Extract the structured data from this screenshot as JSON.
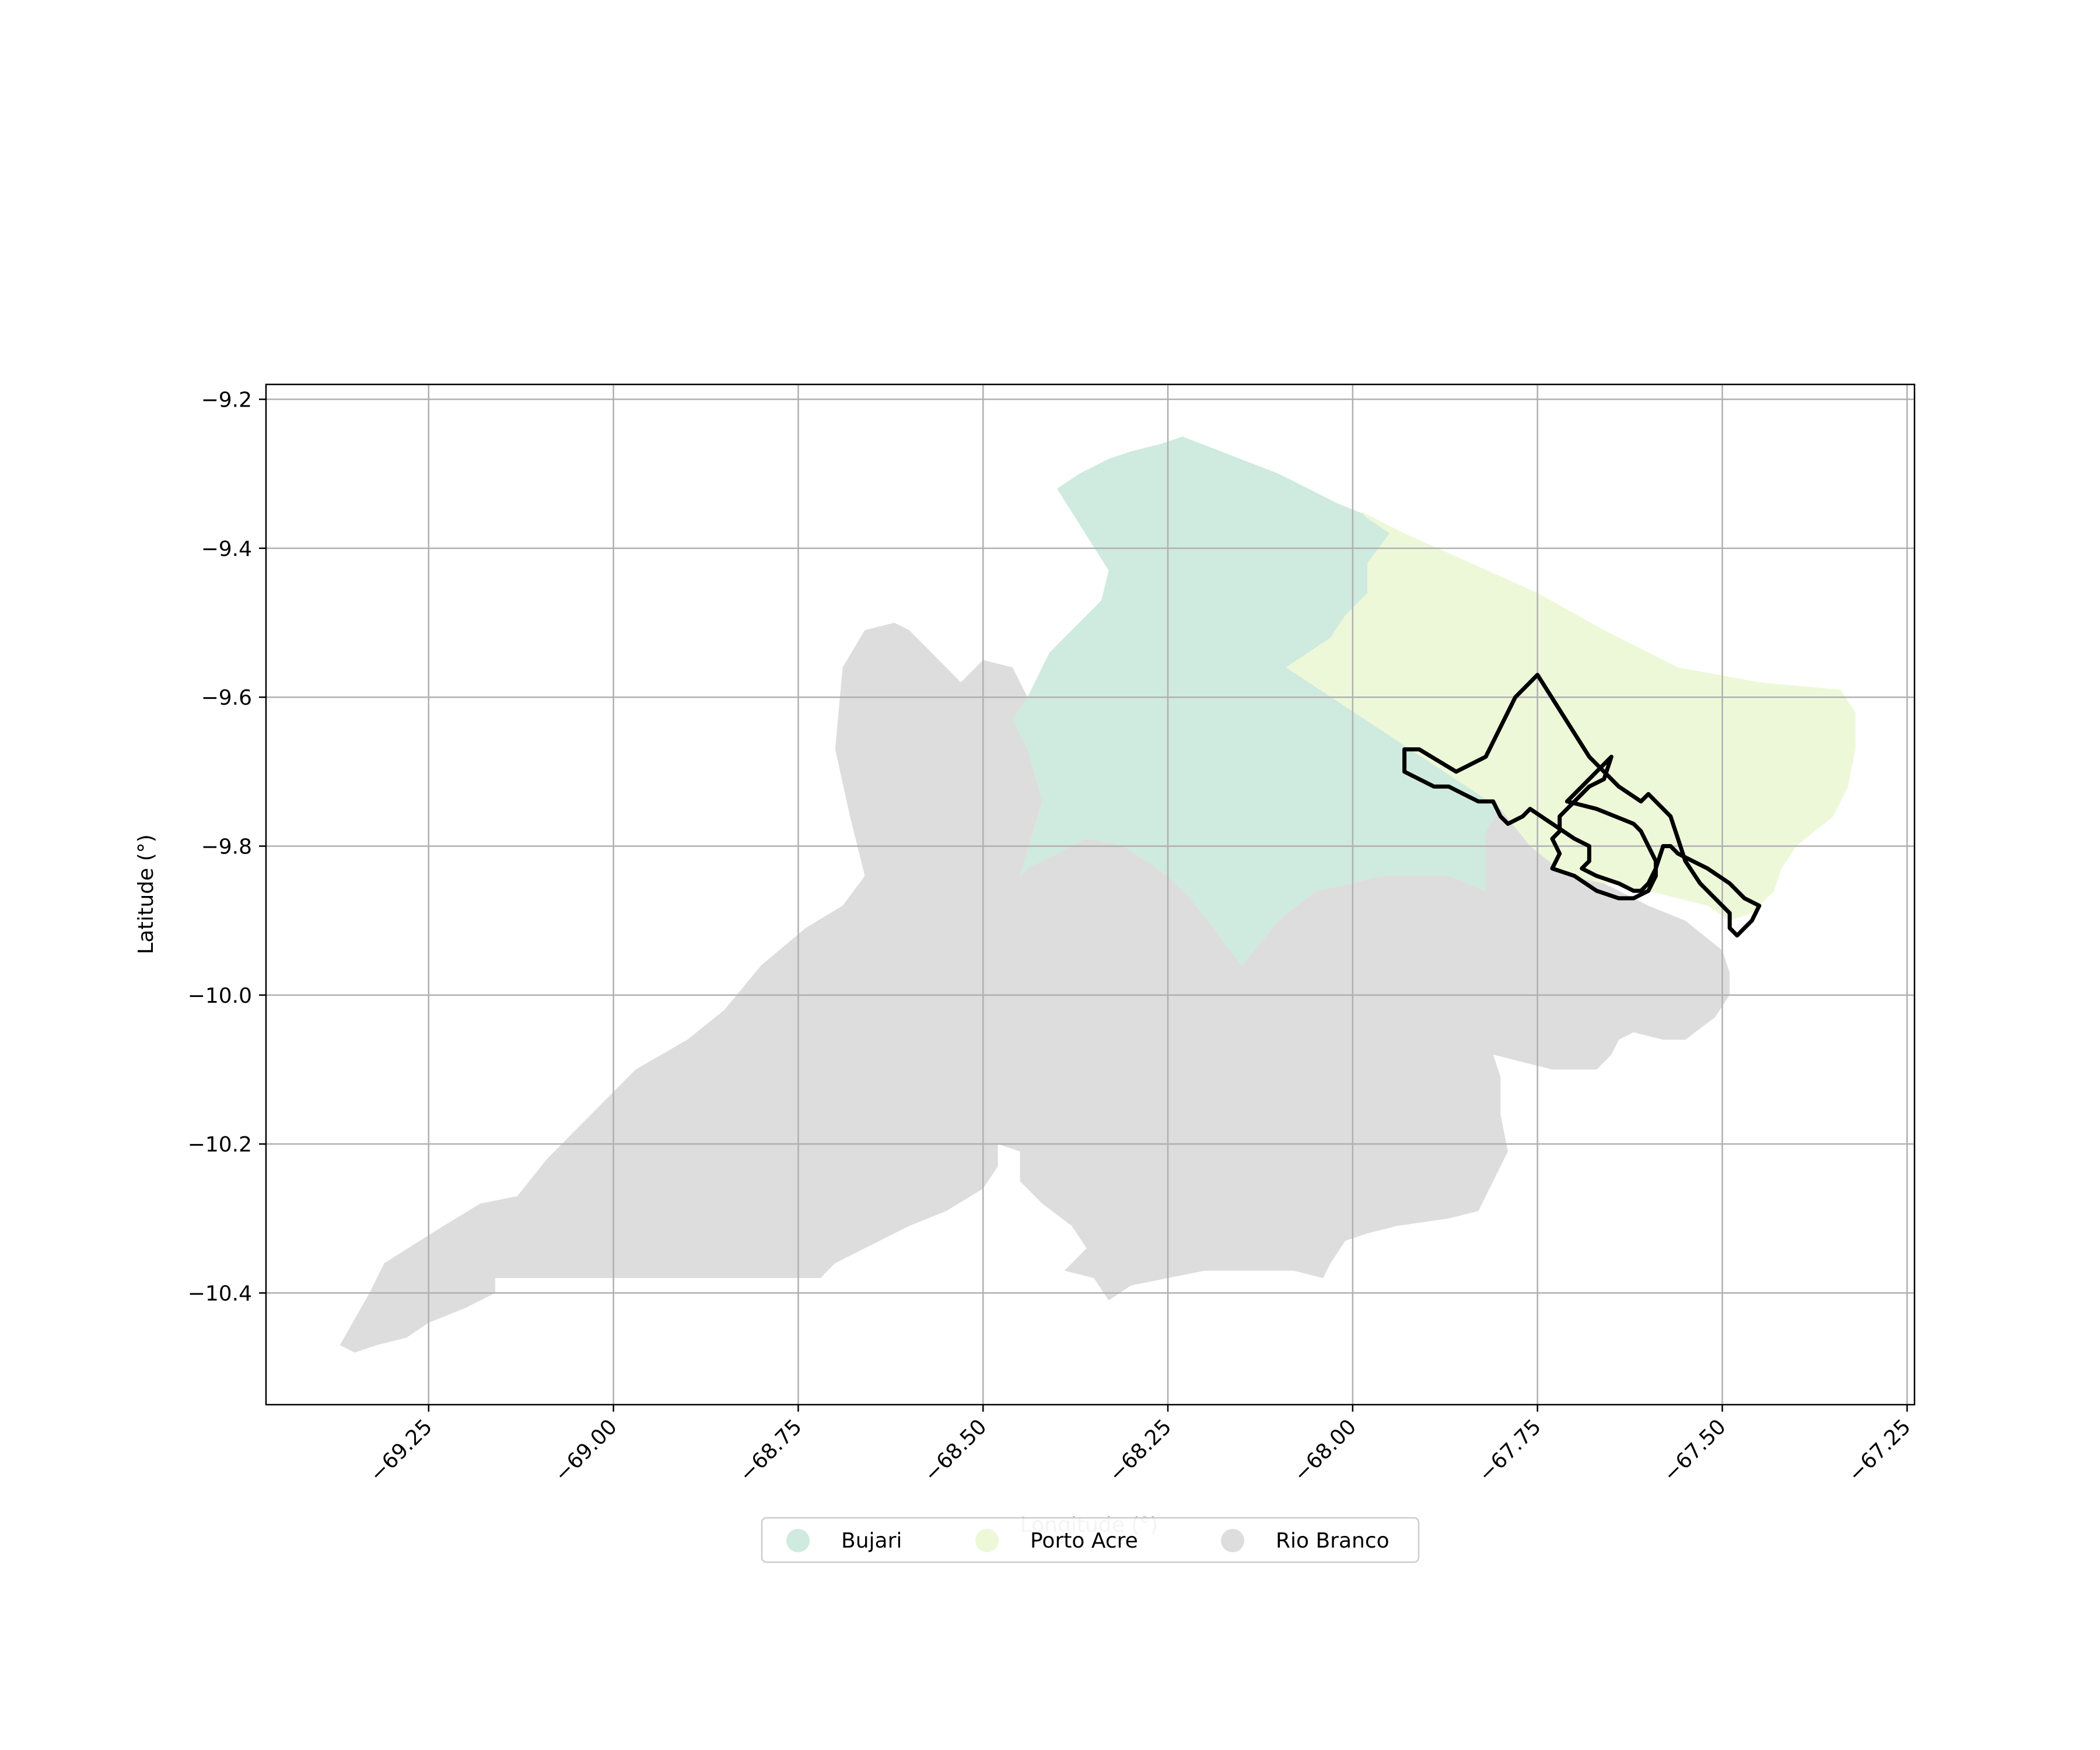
{
  "chart_data": {
    "type": "map",
    "xlabel": "Longitude (°)",
    "ylabel": "Latitude (°)",
    "xlim": [
      -69.47,
      -67.24
    ],
    "ylim": [
      -10.55,
      -9.18
    ],
    "grid": true,
    "legend_placement": "bottom-center",
    "x_ticks": [
      {
        "value": -69.25,
        "label": "−69.25"
      },
      {
        "value": -69.0,
        "label": "−69.00"
      },
      {
        "value": -68.75,
        "label": "−68.75"
      },
      {
        "value": -68.5,
        "label": "−68.50"
      },
      {
        "value": -68.25,
        "label": "−68.25"
      },
      {
        "value": -68.0,
        "label": "−68.00"
      },
      {
        "value": -67.75,
        "label": "−67.75"
      },
      {
        "value": -67.5,
        "label": "−67.50"
      },
      {
        "value": -67.25,
        "label": "−67.25"
      }
    ],
    "y_ticks": [
      {
        "value": -9.2,
        "label": "−9.2"
      },
      {
        "value": -9.4,
        "label": "−9.4"
      },
      {
        "value": -9.6,
        "label": "−9.6"
      },
      {
        "value": -9.8,
        "label": "−9.8"
      },
      {
        "value": -10.0,
        "label": "−10.0"
      },
      {
        "value": -10.2,
        "label": "−10.2"
      },
      {
        "value": -10.4,
        "label": "−10.4"
      }
    ],
    "regions": [
      {
        "name": "Bujari",
        "color": "#cfeadf",
        "polygon": [
          [
            -68.4,
            -9.32
          ],
          [
            -68.37,
            -9.3
          ],
          [
            -68.33,
            -9.28
          ],
          [
            -68.3,
            -9.27
          ],
          [
            -68.26,
            -9.26
          ],
          [
            -68.23,
            -9.25
          ],
          [
            -68.1,
            -9.3
          ],
          [
            -68.02,
            -9.34
          ],
          [
            -67.97,
            -9.36
          ],
          [
            -67.95,
            -9.38
          ],
          [
            -67.98,
            -9.42
          ],
          [
            -67.98,
            -9.46
          ],
          [
            -68.01,
            -9.49
          ],
          [
            -68.03,
            -9.52
          ],
          [
            -68.09,
            -9.56
          ],
          [
            -67.8,
            -9.75
          ],
          [
            -67.82,
            -9.78
          ],
          [
            -67.82,
            -9.86
          ],
          [
            -67.87,
            -9.84
          ],
          [
            -67.96,
            -9.84
          ],
          [
            -68.0,
            -9.85
          ],
          [
            -68.05,
            -9.86
          ],
          [
            -68.1,
            -9.9
          ],
          [
            -68.15,
            -9.96
          ],
          [
            -68.22,
            -9.87
          ],
          [
            -68.25,
            -9.84
          ],
          [
            -68.31,
            -9.8
          ],
          [
            -68.36,
            -9.79
          ],
          [
            -68.4,
            -9.81
          ],
          [
            -68.44,
            -9.83
          ],
          [
            -68.45,
            -9.84
          ],
          [
            -68.42,
            -9.74
          ],
          [
            -68.44,
            -9.67
          ],
          [
            -68.46,
            -9.63
          ],
          [
            -68.44,
            -9.6
          ],
          [
            -68.41,
            -9.54
          ],
          [
            -68.38,
            -9.51
          ],
          [
            -68.34,
            -9.47
          ],
          [
            -68.33,
            -9.43
          ]
        ]
      },
      {
        "name": "Porto Acre",
        "color": "#edf8d9",
        "polygon": [
          [
            -67.95,
            -9.38
          ],
          [
            -67.98,
            -9.36
          ],
          [
            -67.99,
            -9.35
          ],
          [
            -67.93,
            -9.38
          ],
          [
            -67.84,
            -9.42
          ],
          [
            -67.75,
            -9.46
          ],
          [
            -67.66,
            -9.51
          ],
          [
            -67.56,
            -9.56
          ],
          [
            -67.45,
            -9.58
          ],
          [
            -67.34,
            -9.59
          ],
          [
            -67.32,
            -9.62
          ],
          [
            -67.32,
            -9.67
          ],
          [
            -67.33,
            -9.72
          ],
          [
            -67.35,
            -9.76
          ],
          [
            -67.4,
            -9.8
          ],
          [
            -67.42,
            -9.83
          ],
          [
            -67.43,
            -9.86
          ],
          [
            -67.46,
            -9.89
          ],
          [
            -67.49,
            -9.9
          ],
          [
            -67.52,
            -9.88
          ],
          [
            -67.56,
            -9.87
          ],
          [
            -67.6,
            -9.86
          ],
          [
            -67.66,
            -9.85
          ],
          [
            -67.71,
            -9.84
          ],
          [
            -67.76,
            -9.8
          ],
          [
            -67.8,
            -9.75
          ],
          [
            -68.09,
            -9.56
          ],
          [
            -68.03,
            -9.52
          ],
          [
            -68.01,
            -9.49
          ],
          [
            -67.98,
            -9.46
          ],
          [
            -67.98,
            -9.42
          ]
        ]
      },
      {
        "name": "Rio Branco",
        "color": "#dddddd",
        "polygon": [
          [
            -69.37,
            -10.47
          ],
          [
            -69.35,
            -10.48
          ],
          [
            -69.32,
            -10.47
          ],
          [
            -69.28,
            -10.46
          ],
          [
            -69.25,
            -10.44
          ],
          [
            -69.2,
            -10.42
          ],
          [
            -69.16,
            -10.4
          ],
          [
            -69.16,
            -10.38
          ],
          [
            -68.72,
            -10.38
          ],
          [
            -68.7,
            -10.36
          ],
          [
            -68.66,
            -10.34
          ],
          [
            -68.6,
            -10.31
          ],
          [
            -68.55,
            -10.29
          ],
          [
            -68.5,
            -10.26
          ],
          [
            -68.48,
            -10.23
          ],
          [
            -68.48,
            -10.2
          ],
          [
            -68.45,
            -10.21
          ],
          [
            -68.45,
            -10.25
          ],
          [
            -68.42,
            -10.28
          ],
          [
            -68.38,
            -10.31
          ],
          [
            -68.36,
            -10.34
          ],
          [
            -68.39,
            -10.37
          ],
          [
            -68.35,
            -10.38
          ],
          [
            -68.33,
            -10.41
          ],
          [
            -68.3,
            -10.39
          ],
          [
            -68.25,
            -10.38
          ],
          [
            -68.2,
            -10.37
          ],
          [
            -68.14,
            -10.37
          ],
          [
            -68.08,
            -10.37
          ],
          [
            -68.04,
            -10.38
          ],
          [
            -68.03,
            -10.36
          ],
          [
            -68.01,
            -10.33
          ],
          [
            -67.98,
            -10.32
          ],
          [
            -67.94,
            -10.31
          ],
          [
            -67.87,
            -10.3
          ],
          [
            -67.83,
            -10.29
          ],
          [
            -67.81,
            -10.25
          ],
          [
            -67.79,
            -10.21
          ],
          [
            -67.8,
            -10.16
          ],
          [
            -67.8,
            -10.11
          ],
          [
            -67.81,
            -10.08
          ],
          [
            -67.73,
            -10.1
          ],
          [
            -67.67,
            -10.1
          ],
          [
            -67.65,
            -10.08
          ],
          [
            -67.64,
            -10.06
          ],
          [
            -67.62,
            -10.05
          ],
          [
            -67.58,
            -10.06
          ],
          [
            -67.55,
            -10.06
          ],
          [
            -67.51,
            -10.03
          ],
          [
            -67.49,
            -10.0
          ],
          [
            -67.49,
            -9.97
          ],
          [
            -67.5,
            -9.94
          ],
          [
            -67.55,
            -9.9
          ],
          [
            -67.6,
            -9.88
          ],
          [
            -67.66,
            -9.85
          ],
          [
            -67.71,
            -9.84
          ],
          [
            -67.76,
            -9.8
          ],
          [
            -67.8,
            -9.75
          ],
          [
            -67.82,
            -9.78
          ],
          [
            -67.82,
            -9.86
          ],
          [
            -67.87,
            -9.84
          ],
          [
            -67.96,
            -9.84
          ],
          [
            -68.0,
            -9.85
          ],
          [
            -68.05,
            -9.86
          ],
          [
            -68.1,
            -9.9
          ],
          [
            -68.15,
            -9.96
          ],
          [
            -68.22,
            -9.87
          ],
          [
            -68.25,
            -9.84
          ],
          [
            -68.31,
            -9.8
          ],
          [
            -68.36,
            -9.79
          ],
          [
            -68.4,
            -9.81
          ],
          [
            -68.44,
            -9.83
          ],
          [
            -68.45,
            -9.84
          ],
          [
            -68.42,
            -9.74
          ],
          [
            -68.44,
            -9.67
          ],
          [
            -68.46,
            -9.63
          ],
          [
            -68.44,
            -9.6
          ],
          [
            -68.46,
            -9.56
          ],
          [
            -68.5,
            -9.55
          ],
          [
            -68.53,
            -9.58
          ],
          [
            -68.58,
            -9.53
          ],
          [
            -68.6,
            -9.51
          ],
          [
            -68.62,
            -9.5
          ],
          [
            -68.66,
            -9.51
          ],
          [
            -68.69,
            -9.56
          ],
          [
            -68.7,
            -9.67
          ],
          [
            -68.68,
            -9.76
          ],
          [
            -68.66,
            -9.84
          ],
          [
            -68.69,
            -9.88
          ],
          [
            -68.74,
            -9.91
          ],
          [
            -68.8,
            -9.96
          ],
          [
            -68.85,
            -10.02
          ],
          [
            -68.9,
            -10.06
          ],
          [
            -68.97,
            -10.1
          ],
          [
            -69.04,
            -10.17
          ],
          [
            -69.09,
            -10.22
          ],
          [
            -69.13,
            -10.27
          ],
          [
            -69.18,
            -10.28
          ],
          [
            -69.23,
            -10.31
          ],
          [
            -69.31,
            -10.36
          ],
          [
            -69.33,
            -10.4
          ]
        ]
      }
    ],
    "outlines": [
      {
        "line": [
          [
            -67.91,
            -9.67
          ],
          [
            -67.93,
            -9.67
          ],
          [
            -67.93,
            -9.7
          ],
          [
            -67.91,
            -9.71
          ],
          [
            -67.89,
            -9.72
          ],
          [
            -67.87,
            -9.72
          ],
          [
            -67.85,
            -9.73
          ],
          [
            -67.83,
            -9.74
          ],
          [
            -67.81,
            -9.74
          ],
          [
            -67.8,
            -9.76
          ],
          [
            -67.79,
            -9.77
          ],
          [
            -67.77,
            -9.76
          ],
          [
            -67.76,
            -9.75
          ],
          [
            -67.73,
            -9.77
          ],
          [
            -67.7,
            -9.79
          ],
          [
            -67.68,
            -9.8
          ],
          [
            -67.68,
            -9.82
          ],
          [
            -67.69,
            -9.83
          ],
          [
            -67.67,
            -9.84
          ],
          [
            -67.64,
            -9.85
          ],
          [
            -67.62,
            -9.86
          ],
          [
            -67.61,
            -9.86
          ],
          [
            -67.6,
            -9.85
          ],
          [
            -67.59,
            -9.83
          ],
          [
            -67.58,
            -9.8
          ],
          [
            -67.57,
            -9.8
          ],
          [
            -67.56,
            -9.81
          ],
          [
            -67.54,
            -9.82
          ],
          [
            -67.52,
            -9.83
          ],
          [
            -67.49,
            -9.85
          ],
          [
            -67.47,
            -9.87
          ],
          [
            -67.45,
            -9.88
          ],
          [
            -67.46,
            -9.9
          ],
          [
            -67.47,
            -9.91
          ],
          [
            -67.48,
            -9.92
          ],
          [
            -67.49,
            -9.91
          ],
          [
            -67.49,
            -9.89
          ],
          [
            -67.5,
            -9.88
          ],
          [
            -67.53,
            -9.85
          ],
          [
            -67.55,
            -9.82
          ],
          [
            -67.56,
            -9.79
          ],
          [
            -67.57,
            -9.76
          ],
          [
            -67.58,
            -9.75
          ],
          [
            -67.6,
            -9.73
          ],
          [
            -67.61,
            -9.74
          ],
          [
            -67.64,
            -9.72
          ],
          [
            -67.65,
            -9.71
          ],
          [
            -67.68,
            -9.68
          ],
          [
            -67.75,
            -9.57
          ],
          [
            -67.78,
            -9.6
          ],
          [
            -67.8,
            -9.64
          ],
          [
            -67.82,
            -9.68
          ],
          [
            -67.86,
            -9.7
          ]
        ]
      },
      {
        "line": [
          [
            -67.65,
            -9.68
          ],
          [
            -67.66,
            -9.71
          ],
          [
            -67.68,
            -9.72
          ],
          [
            -67.7,
            -9.74
          ],
          [
            -67.71,
            -9.75
          ],
          [
            -67.72,
            -9.76
          ],
          [
            -67.72,
            -9.78
          ],
          [
            -67.73,
            -9.79
          ],
          [
            -67.72,
            -9.81
          ],
          [
            -67.73,
            -9.83
          ],
          [
            -67.7,
            -9.84
          ],
          [
            -67.67,
            -9.86
          ],
          [
            -67.64,
            -9.87
          ],
          [
            -67.62,
            -9.87
          ],
          [
            -67.6,
            -9.86
          ],
          [
            -67.59,
            -9.84
          ],
          [
            -67.59,
            -9.82
          ],
          [
            -67.6,
            -9.8
          ],
          [
            -67.61,
            -9.78
          ],
          [
            -67.62,
            -9.77
          ],
          [
            -67.67,
            -9.75
          ],
          [
            -67.71,
            -9.74
          ]
        ]
      }
    ]
  },
  "legend": {
    "items": [
      {
        "label": "Bujari",
        "color": "#cfeadf"
      },
      {
        "label": "Porto Acre",
        "color": "#edf8d9"
      },
      {
        "label": "Rio Branco",
        "color": "#dddddd"
      }
    ]
  }
}
